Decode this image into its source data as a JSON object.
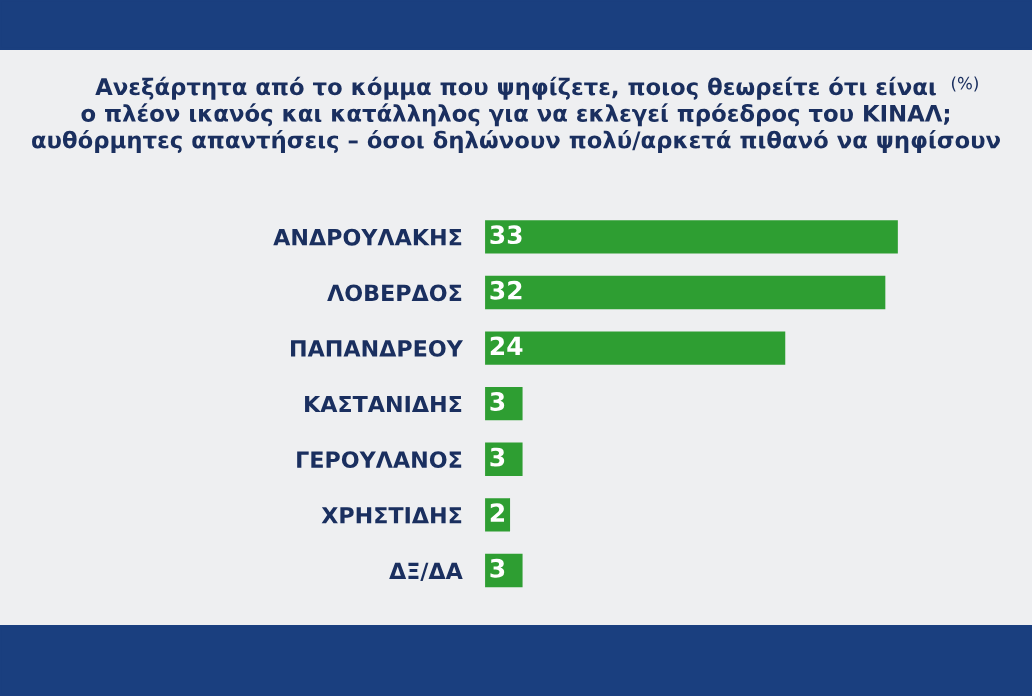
{
  "chart_data": {
    "type": "bar",
    "orientation": "horizontal",
    "title": "Ανεξάρτητα από το κόμμα που ψηφίζετε, ποιος θεωρείτε ότι είναι\nο πλέον ικανός και κατάλληλος για να εκλεγεί πρόεδρος του ΚΙΝΑΛ;\nαυθόρμητες απαντήσεις – όσοι δηλώνουν πολύ/αρκετά πιθανό να ψηφίσουν",
    "annotations": [
      "(%)"
    ],
    "categories": [
      "ΑΝΔΡΟΥΛΑΚΗΣ",
      "ΛΟΒΕΡΔΟΣ",
      "ΠΑΠΑΝΔΡΕΟΥ",
      "ΚΑΣΤΑΝΙΔΗΣ",
      "ΓΕΡΟΥΛΑΝΟΣ",
      "ΧΡΗΣΤΙΔΗΣ",
      "ΔΞ/ΔΑ"
    ],
    "values": [
      33,
      32,
      24,
      3,
      3,
      2,
      3
    ],
    "color": "#2e9e32",
    "data_labels": true,
    "grid": false,
    "legend": false
  }
}
